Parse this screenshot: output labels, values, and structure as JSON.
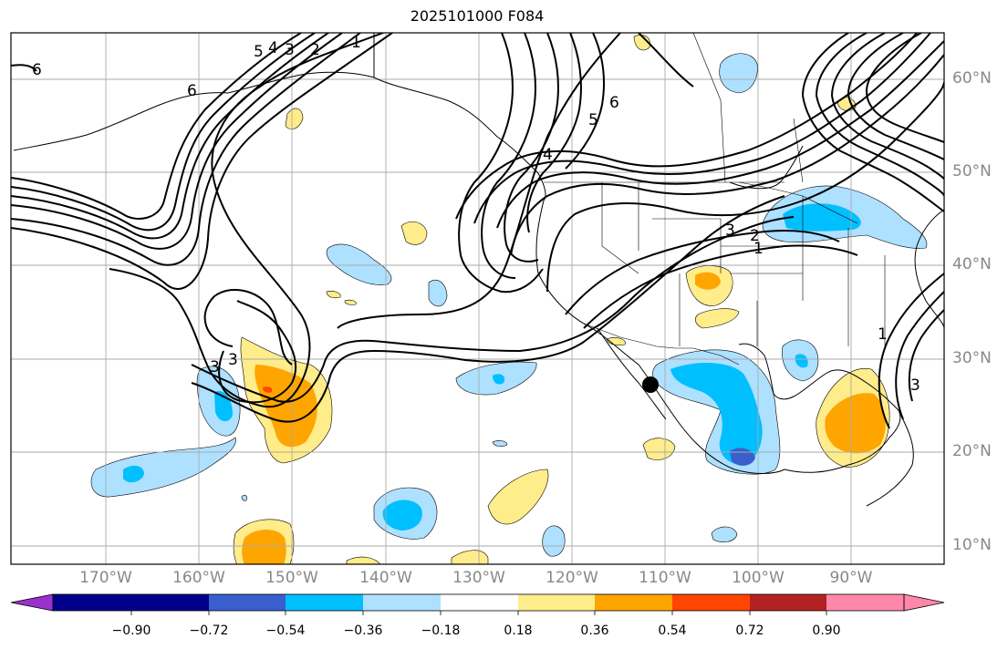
{
  "title": "2025101000 F084",
  "lon_labels": [
    "170°W",
    "160°W",
    "150°W",
    "140°W",
    "130°W",
    "120°W",
    "110°W",
    "100°W",
    "90°W"
  ],
  "lat_labels": [
    "60°N",
    "50°N",
    "40°N",
    "30°N",
    "20°N",
    "10°N"
  ],
  "colorbar": {
    "ticks": [
      "−0.90",
      "−0.72",
      "−0.54",
      "−0.36",
      "−0.18",
      "0.18",
      "0.36",
      "0.54",
      "0.72",
      "0.90"
    ],
    "colors": [
      "#9932cc",
      "#00008b",
      "#3a5fcd",
      "#00bfff",
      "#aee0ff",
      "#ffffff",
      "#ffec8b",
      "#ffa500",
      "#ff4500",
      "#b22222",
      "#ff88aa"
    ]
  },
  "contour_labels": [
    "1",
    "2",
    "3",
    "4",
    "5",
    "6",
    "3",
    "3",
    "3",
    "2",
    "1",
    "4",
    "5",
    "6",
    "1",
    "3",
    "6"
  ],
  "marker": "storm-center"
}
